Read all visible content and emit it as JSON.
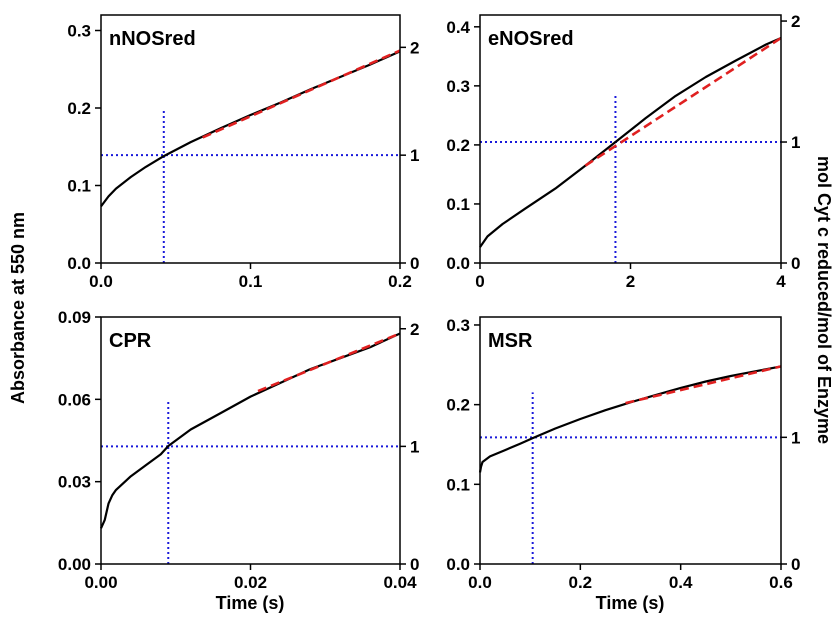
{
  "figure": {
    "left_axis_title": "Absorbance at 550 nm",
    "right_axis_title": "mol Cyt c reduced/mol of Enzyme",
    "x_axis_title": "Time (s)"
  },
  "colors": {
    "trace": "#000000",
    "fit": "#e02020",
    "guide": "#1a1adb"
  },
  "chart_data": [
    {
      "type": "line",
      "panel_label": "nNOSred",
      "xlabel": "",
      "ylabel": "Absorbance at 550 nm",
      "y2label": "",
      "xlim": [
        0,
        0.2
      ],
      "ylim": [
        0,
        0.32
      ],
      "y2lim": [
        0,
        2.3
      ],
      "x_ticks": [
        0.0,
        0.1,
        0.2
      ],
      "x_tick_labels": [
        "0.0",
        "0.1",
        "0.2"
      ],
      "y_ticks": [
        0.0,
        0.1,
        0.2,
        0.3
      ],
      "y_tick_labels": [
        "0.0",
        "0.1",
        "0.2",
        "0.3"
      ],
      "y2_ticks": [
        0,
        1,
        2
      ],
      "y2_tick_labels": [
        "0",
        "1",
        "2"
      ],
      "series": [
        {
          "role": "data",
          "x": [
            0.0,
            0.005,
            0.01,
            0.02,
            0.03,
            0.042,
            0.06,
            0.08,
            0.1,
            0.12,
            0.14,
            0.16,
            0.18,
            0.2
          ],
          "y": [
            0.073,
            0.086,
            0.096,
            0.111,
            0.124,
            0.138,
            0.156,
            0.174,
            0.191,
            0.207,
            0.224,
            0.24,
            0.256,
            0.273
          ]
        },
        {
          "role": "fit",
          "x": [
            0.068,
            0.2
          ],
          "y": [
            0.162,
            0.274
          ]
        }
      ],
      "guide": {
        "x": 0.042,
        "y": 0.139,
        "y2": 1
      }
    },
    {
      "type": "line",
      "panel_label": "eNOSred",
      "xlabel": "",
      "ylabel": "",
      "y2label": "mol Cyt c reduced/mol of Enzyme",
      "xlim": [
        0,
        4
      ],
      "ylim": [
        0,
        0.42
      ],
      "y2lim": [
        0,
        2.05
      ],
      "x_ticks": [
        0,
        2,
        4
      ],
      "x_tick_labels": [
        "0",
        "2",
        "4"
      ],
      "y_ticks": [
        0.0,
        0.1,
        0.2,
        0.3,
        0.4
      ],
      "y_tick_labels": [
        "0.0",
        "0.1",
        "0.2",
        "0.3",
        "0.4"
      ],
      "y2_ticks": [
        0,
        1,
        2
      ],
      "y2_tick_labels": [
        "0",
        "1",
        "2"
      ],
      "series": [
        {
          "role": "data",
          "x": [
            0.0,
            0.1,
            0.3,
            0.6,
            1.0,
            1.4,
            1.8,
            2.2,
            2.6,
            3.0,
            3.4,
            3.8,
            4.0
          ],
          "y": [
            0.027,
            0.045,
            0.066,
            0.092,
            0.126,
            0.165,
            0.205,
            0.245,
            0.283,
            0.315,
            0.343,
            0.37,
            0.381
          ]
        },
        {
          "role": "fit",
          "x": [
            1.4,
            4.0
          ],
          "y": [
            0.165,
            0.381
          ]
        }
      ],
      "guide": {
        "x": 1.8,
        "y": 0.208,
        "y2": 1
      }
    },
    {
      "type": "line",
      "panel_label": "CPR",
      "xlabel": "Time (s)",
      "ylabel": "",
      "y2label": "",
      "xlim": [
        0,
        0.04
      ],
      "ylim": [
        0,
        0.09
      ],
      "y2lim": [
        0,
        2.1
      ],
      "x_ticks": [
        0.0,
        0.02,
        0.04
      ],
      "x_tick_labels": [
        "0.00",
        "0.02",
        "0.04"
      ],
      "y_ticks": [
        0.0,
        0.03,
        0.06,
        0.09
      ],
      "y_tick_labels": [
        "0.00",
        "0.03",
        "0.06",
        "0.09"
      ],
      "y2_ticks": [
        0,
        1,
        2
      ],
      "y2_tick_labels": [
        "0",
        "1",
        "2"
      ],
      "series": [
        {
          "role": "data",
          "x": [
            0.0,
            0.0005,
            0.001,
            0.0015,
            0.002,
            0.004,
            0.006,
            0.008,
            0.009,
            0.012,
            0.016,
            0.02,
            0.024,
            0.028,
            0.032,
            0.036,
            0.04
          ],
          "y": [
            0.013,
            0.016,
            0.022,
            0.025,
            0.027,
            0.032,
            0.036,
            0.04,
            0.043,
            0.049,
            0.055,
            0.061,
            0.066,
            0.071,
            0.075,
            0.079,
            0.084
          ]
        },
        {
          "role": "fit",
          "x": [
            0.021,
            0.04
          ],
          "y": [
            0.063,
            0.084
          ]
        }
      ],
      "guide": {
        "x": 0.009,
        "y": 0.043,
        "y2": 1
      }
    },
    {
      "type": "line",
      "panel_label": "MSR",
      "xlabel": "Time (s)",
      "ylabel": "",
      "y2label": "",
      "xlim": [
        0,
        0.6
      ],
      "ylim": [
        0,
        0.31
      ],
      "y2lim": [
        0,
        1.95
      ],
      "x_ticks": [
        0.0,
        0.2,
        0.4,
        0.6
      ],
      "x_tick_labels": [
        "0.0",
        "0.2",
        "0.4",
        "0.6"
      ],
      "y_ticks": [
        0.0,
        0.1,
        0.2,
        0.3
      ],
      "y_tick_labels": [
        "0.0",
        "0.1",
        "0.2",
        "0.3"
      ],
      "y2_ticks": [
        0,
        1
      ],
      "y2_tick_labels": [
        "0",
        "1"
      ],
      "series": [
        {
          "role": "data",
          "x": [
            0.0,
            0.002,
            0.005,
            0.02,
            0.05,
            0.08,
            0.105,
            0.15,
            0.2,
            0.25,
            0.3,
            0.35,
            0.4,
            0.45,
            0.5,
            0.55,
            0.6
          ],
          "y": [
            0.115,
            0.122,
            0.128,
            0.135,
            0.143,
            0.151,
            0.158,
            0.17,
            0.182,
            0.193,
            0.203,
            0.212,
            0.221,
            0.229,
            0.236,
            0.242,
            0.248
          ]
        },
        {
          "role": "fit",
          "x": [
            0.29,
            0.6
          ],
          "y": [
            0.202,
            0.248
          ]
        }
      ],
      "guide": {
        "x": 0.105,
        "y": 0.159,
        "y2": 1
      }
    }
  ]
}
